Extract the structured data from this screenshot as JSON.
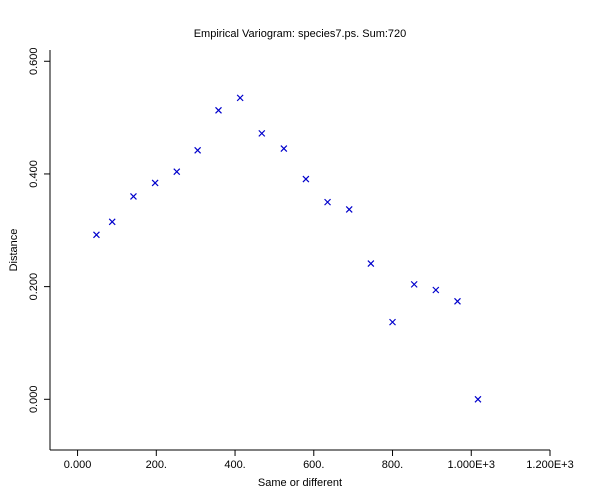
{
  "chart_data": {
    "type": "scatter",
    "title": "Empirical Variogram: species7.ps. Sum:720",
    "xlabel": "Same or different",
    "ylabel": "Distance",
    "xlim": [
      -70,
      1200
    ],
    "ylim": [
      -0.09,
      0.62
    ],
    "x_ticks": [
      {
        "value": 0,
        "label": "0.000"
      },
      {
        "value": 200,
        "label": "200."
      },
      {
        "value": 400,
        "label": "400."
      },
      {
        "value": 600,
        "label": "600."
      },
      {
        "value": 800,
        "label": "800."
      },
      {
        "value": 1000,
        "label": "1.000E+3"
      },
      {
        "value": 1200,
        "label": "1.200E+3"
      }
    ],
    "y_ticks": [
      {
        "value": 0,
        "label": "0.000"
      },
      {
        "value": 0.2,
        "label": "0.200"
      },
      {
        "value": 0.4,
        "label": "0.400"
      },
      {
        "value": 0.6,
        "label": "0.600"
      }
    ],
    "marker": "x",
    "color": "#0000cc",
    "grid": false,
    "points": [
      {
        "x": 48,
        "y": 0.292
      },
      {
        "x": 88,
        "y": 0.315
      },
      {
        "x": 142,
        "y": 0.36
      },
      {
        "x": 197,
        "y": 0.384
      },
      {
        "x": 252,
        "y": 0.404
      },
      {
        "x": 305,
        "y": 0.442
      },
      {
        "x": 358,
        "y": 0.513
      },
      {
        "x": 413,
        "y": 0.535
      },
      {
        "x": 468,
        "y": 0.472
      },
      {
        "x": 524,
        "y": 0.445
      },
      {
        "x": 580,
        "y": 0.391
      },
      {
        "x": 635,
        "y": 0.35
      },
      {
        "x": 690,
        "y": 0.337
      },
      {
        "x": 745,
        "y": 0.241
      },
      {
        "x": 800,
        "y": 0.137
      },
      {
        "x": 855,
        "y": 0.204
      },
      {
        "x": 910,
        "y": 0.194
      },
      {
        "x": 965,
        "y": 0.174
      },
      {
        "x": 1017,
        "y": 0.0
      }
    ]
  }
}
